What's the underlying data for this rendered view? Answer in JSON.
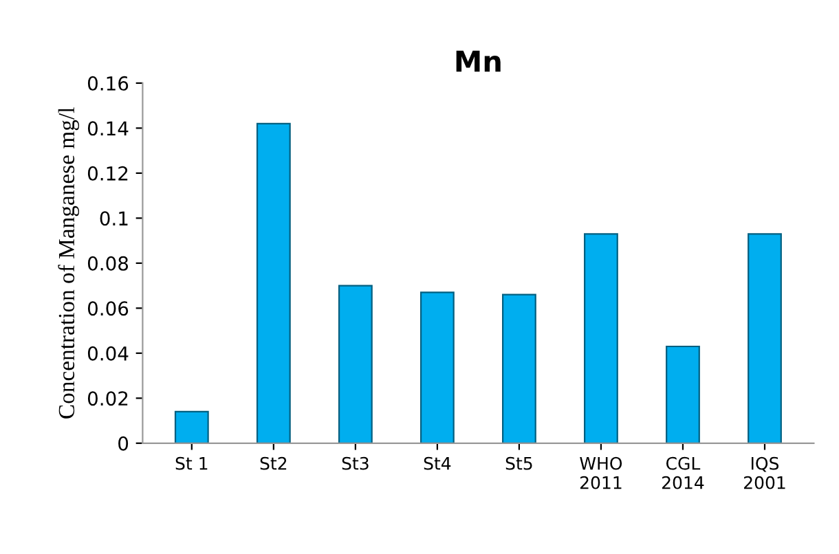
{
  "chart_data": {
    "type": "bar",
    "title": "Mn",
    "ylabel": "Concentration of Manganese mg/l",
    "categories": [
      "St 1",
      "St2",
      "St3",
      "St4",
      "St5",
      "WHO\n2011",
      "CGL\n2014",
      "IQS\n2001"
    ],
    "values": [
      0.014,
      0.142,
      0.07,
      0.067,
      0.066,
      0.093,
      0.043,
      0.093
    ],
    "color": "#00aeef",
    "ylim": [
      0,
      0.16
    ],
    "yticks": [
      0,
      0.02,
      0.04,
      0.06,
      0.08,
      0.1,
      0.12,
      0.14,
      0.16
    ],
    "grid": false
  }
}
